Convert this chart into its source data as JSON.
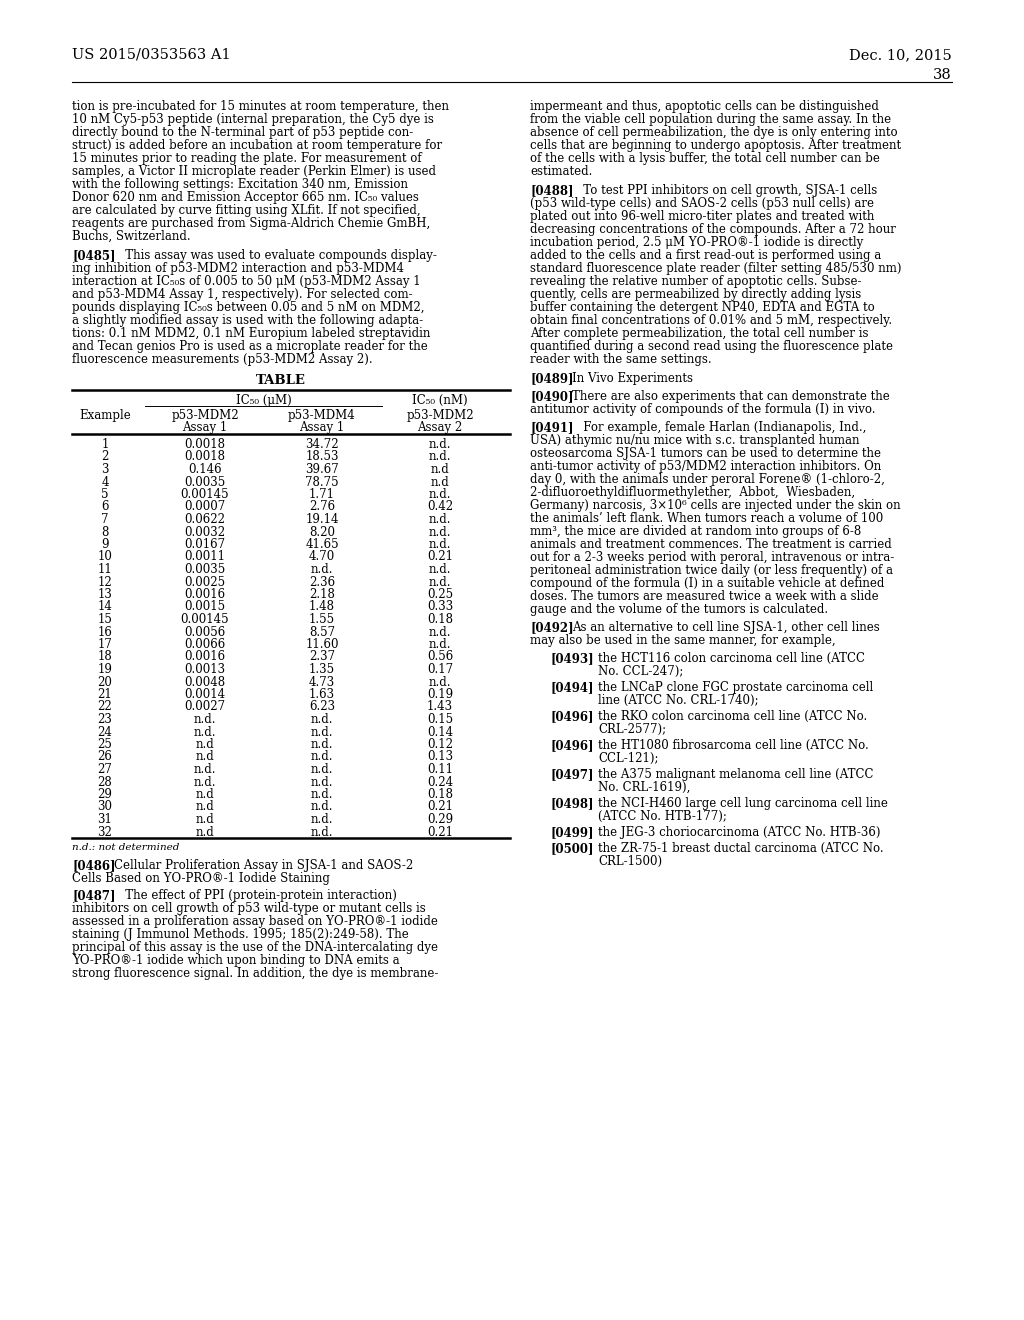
{
  "header_left": "US 2015/0353563 A1",
  "header_right": "Dec. 10, 2015",
  "page_number": "38",
  "background_color": "#ffffff",
  "text_color": "#000000",
  "left_col_top_lines": [
    "tion is pre-incubated for 15 minutes at room temperature, then",
    "10 nM Cy5-p53 peptide (internal preparation, the Cy5 dye is",
    "directly bound to the N-terminal part of p53 peptide con-",
    "struct) is added before an incubation at room temperature for",
    "15 minutes prior to reading the plate. For measurement of",
    "samples, a Victor II microplate reader (Perkin Elmer) is used",
    "with the following settings: Excitation 340 nm, Emission",
    "Donor 620 nm and Emission Acceptor 665 nm. IC₅₀ values",
    "are calculated by curve fitting using XLfit. If not specified,",
    "reagents are purchased from Sigma-Aldrich Chemie GmBH,",
    "Buchs, Switzerland."
  ],
  "right_col_top_lines": [
    "impermeant and thus, apoptotic cells can be distinguished",
    "from the viable cell population during the same assay. In the",
    "absence of cell permeabilization, the dye is only entering into",
    "cells that are beginning to undergo apoptosis. After treatment",
    "of the cells with a lysis buffer, the total cell number can be",
    "estimated."
  ],
  "table_data": [
    [
      "1",
      "0.0018",
      "34.72",
      "n.d."
    ],
    [
      "2",
      "0.0018",
      "18.53",
      "n.d."
    ],
    [
      "3",
      "0.146",
      "39.67",
      "n.d"
    ],
    [
      "4",
      "0.0035",
      "78.75",
      "n.d"
    ],
    [
      "5",
      "0.00145",
      "1.71",
      "n.d."
    ],
    [
      "6",
      "0.0007",
      "2.76",
      "0.42"
    ],
    [
      "7",
      "0.0622",
      "19.14",
      "n.d."
    ],
    [
      "8",
      "0.0032",
      "8.20",
      "n.d."
    ],
    [
      "9",
      "0.0167",
      "41.65",
      "n.d."
    ],
    [
      "10",
      "0.0011",
      "4.70",
      "0.21"
    ],
    [
      "11",
      "0.0035",
      "n.d.",
      "n.d."
    ],
    [
      "12",
      "0.0025",
      "2.36",
      "n.d."
    ],
    [
      "13",
      "0.0016",
      "2.18",
      "0.25"
    ],
    [
      "14",
      "0.0015",
      "1.48",
      "0.33"
    ],
    [
      "15",
      "0.00145",
      "1.55",
      "0.18"
    ],
    [
      "16",
      "0.0056",
      "8.57",
      "n.d."
    ],
    [
      "17",
      "0.0066",
      "11.60",
      "n.d."
    ],
    [
      "18",
      "0.0016",
      "2.37",
      "0.56"
    ],
    [
      "19",
      "0.0013",
      "1.35",
      "0.17"
    ],
    [
      "20",
      "0.0048",
      "4.73",
      "n.d."
    ],
    [
      "21",
      "0.0014",
      "1.63",
      "0.19"
    ],
    [
      "22",
      "0.0027",
      "6.23",
      "1.43"
    ],
    [
      "23",
      "n.d.",
      "n.d.",
      "0.15"
    ],
    [
      "24",
      "n.d.",
      "n.d.",
      "0.14"
    ],
    [
      "25",
      "n.d",
      "n.d.",
      "0.12"
    ],
    [
      "26",
      "n.d",
      "n.d.",
      "0.13"
    ],
    [
      "27",
      "n.d.",
      "n.d.",
      "0.11"
    ],
    [
      "28",
      "n.d.",
      "n.d.",
      "0.24"
    ],
    [
      "29",
      "n.d",
      "n.d.",
      "0.18"
    ],
    [
      "30",
      "n.d",
      "n.d.",
      "0.21"
    ],
    [
      "31",
      "n.d",
      "n.d.",
      "0.29"
    ],
    [
      "32",
      "n.d",
      "n.d.",
      "0.21"
    ]
  ]
}
